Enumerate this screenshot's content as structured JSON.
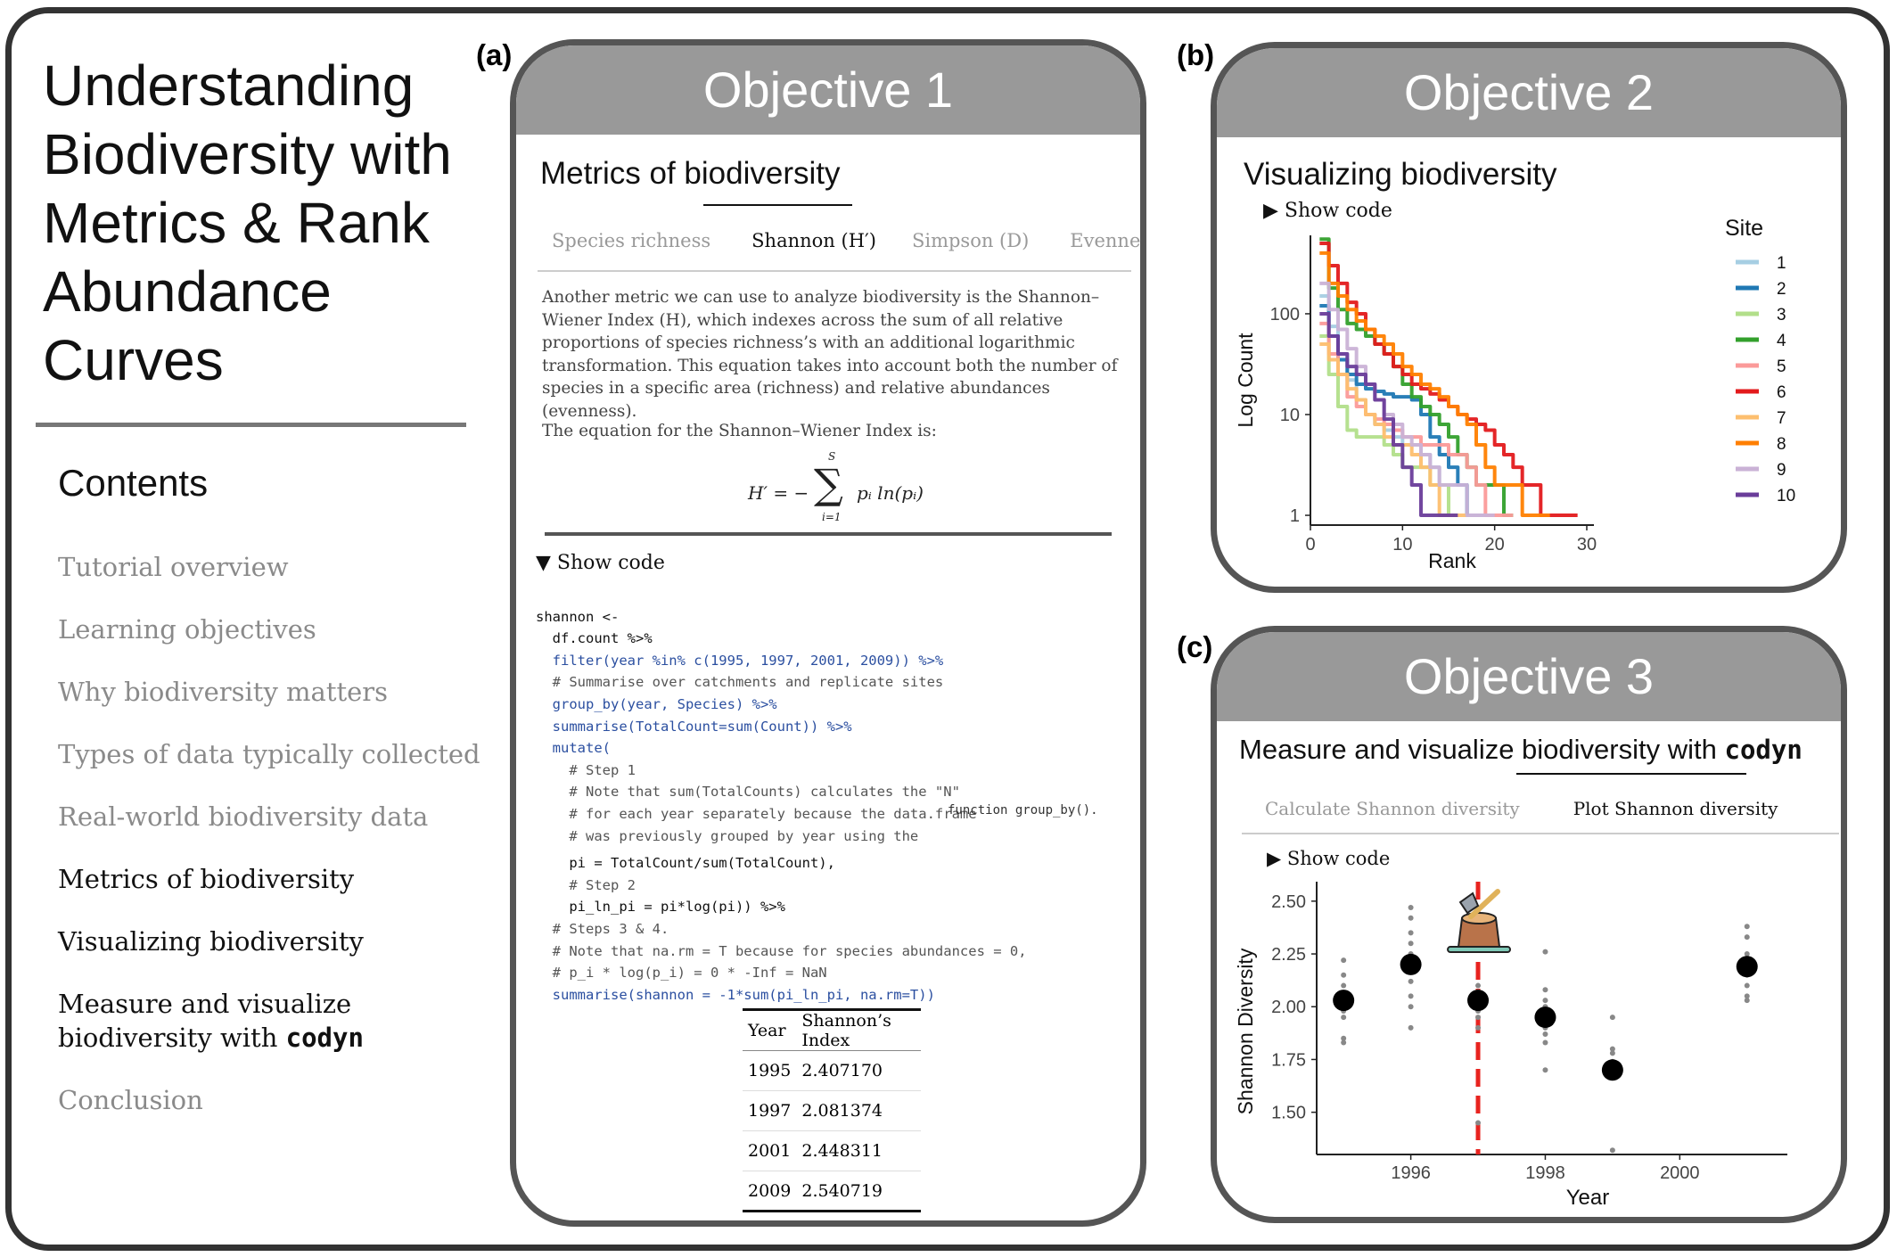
{
  "sidebar": {
    "title": "Understanding\nBiodiversity with\nMetrics & Rank\nAbundance\nCurves",
    "contents_heading": "Contents",
    "items": [
      {
        "label": "Tutorial overview"
      },
      {
        "label": "Learning objectives"
      },
      {
        "label": "Why biodiversity matters"
      },
      {
        "label": "Types of data typically collected"
      },
      {
        "label": "Real-world biodiversity data"
      },
      {
        "label": "Metrics of biodiversity"
      },
      {
        "label": "Visualizing biodiversity"
      },
      {
        "label": "Measure and visualize biodiversity with",
        "code": "codyn"
      },
      {
        "label": "Conclusion"
      }
    ]
  },
  "panel_a": {
    "label": "(a)",
    "title": "Objective 1",
    "heading": "Metrics of biodiversity",
    "tabs": [
      "Species richness",
      "Shannon (H′)",
      "Simpson (D)",
      "Evenness (E)"
    ],
    "paragraph1": "Another metric we can use to analyze biodiversity is the Shannon–Wiener Index (H), which indexes across the sum of all relative proportions of species richness’s with an additional logarithmic transformation. This equation takes into account both the number of species in a specific area (richness) and relative abundances (evenness).",
    "paragraph2": "The equation for the Shannon–Wiener Index is:",
    "equation": {
      "lhs": "H′ = −",
      "upper": "S",
      "lower": "i=1",
      "term": "pᵢ ln(pᵢ)"
    },
    "show_code": "▼  Show code",
    "code_lines": [
      "shannon <-",
      "  df.count %>%",
      "  filter(year %in% c(1995, 1997, 2001, 2009)) %>%",
      "  # Summarise over catchments and replicate sites",
      "  group_by(year, Species) %>%",
      "  summarise(TotalCount=sum(Count)) %>%",
      "  mutate(",
      "    # Step 1",
      "    # Note that sum(TotalCounts) calculates the \"N\"",
      "    # for each year separately because the data.frame",
      "    # was previously grouped by year using the",
      "    pi = TotalCount/sum(TotalCount),",
      "    # Step 2",
      "    pi_ln_pi = pi*log(pi)) %>%",
      "  # Steps 3 & 4.",
      "  # Note that na.rm = T because for species abundances = 0,",
      "  # p_i * log(p_i) = 0 * -Inf = NaN",
      "  summarise(shannon = -1*sum(pi_ln_pi, na.rm=T))"
    ],
    "code_overflow": "function group_by().",
    "table": {
      "headers": [
        "Year",
        "Shannon’s Index"
      ],
      "rows": [
        [
          "1995",
          "2.407170"
        ],
        [
          "1997",
          "2.081374"
        ],
        [
          "2001",
          "2.448311"
        ],
        [
          "2009",
          "2.540719"
        ]
      ]
    }
  },
  "panel_b": {
    "label": "(b)",
    "title": "Objective 2",
    "heading": "Visualizing biodiversity",
    "show_code": "▶  Show code",
    "chart_data": {
      "type": "line",
      "xlabel": "Rank",
      "ylabel": "Log Count",
      "yscale": "log",
      "xlim": [
        0,
        30
      ],
      "ylim": [
        0.8,
        600
      ],
      "x_ticks": [
        "0",
        "10",
        "20",
        "30"
      ],
      "y_ticks": [
        "1",
        "10",
        "100"
      ],
      "legend_title": "Site",
      "legend_position": "right",
      "series": [
        {
          "name": "1",
          "color": "#a6cee3",
          "x": [
            1,
            2,
            3,
            4,
            5,
            6,
            7,
            8,
            9,
            10,
            11,
            12,
            13,
            14,
            15,
            16,
            17,
            18,
            19
          ],
          "y": [
            150,
            75,
            40,
            22,
            14,
            10,
            8,
            7,
            6,
            5,
            5,
            4,
            3,
            2,
            2,
            2,
            1,
            1,
            1
          ]
        },
        {
          "name": "2",
          "color": "#1f78b4",
          "x": [
            1,
            2,
            3,
            4,
            5,
            6,
            7,
            8,
            9,
            10,
            11,
            12,
            13,
            14,
            15,
            16,
            17
          ],
          "y": [
            120,
            60,
            35,
            25,
            20,
            18,
            17,
            16,
            15,
            15,
            14,
            10,
            6,
            4,
            3,
            2,
            1
          ]
        },
        {
          "name": "3",
          "color": "#b2df8a",
          "x": [
            1,
            2,
            3,
            4,
            5,
            6,
            7,
            8,
            9,
            10,
            11,
            12,
            13,
            14,
            15,
            16
          ],
          "y": [
            60,
            25,
            12,
            7,
            6,
            6,
            6,
            5,
            4,
            3,
            3,
            3,
            2,
            2,
            1,
            1
          ]
        },
        {
          "name": "4",
          "color": "#33a02c",
          "x": [
            1,
            2,
            3,
            4,
            5,
            6,
            7,
            8,
            9,
            10,
            11,
            12,
            13,
            14,
            15,
            16,
            17,
            18,
            19,
            20,
            21,
            22
          ],
          "y": [
            550,
            180,
            110,
            80,
            70,
            60,
            50,
            40,
            30,
            20,
            15,
            12,
            10,
            8,
            6,
            4,
            3,
            2,
            2,
            2,
            1,
            1
          ]
        },
        {
          "name": "5",
          "color": "#fb9a99",
          "x": [
            1,
            2,
            3,
            4,
            5,
            6,
            7,
            8,
            9,
            10,
            11,
            12,
            13,
            14,
            15,
            16,
            17,
            18,
            19,
            20,
            21,
            22
          ],
          "y": [
            80,
            40,
            25,
            15,
            12,
            10,
            9,
            8,
            7,
            6,
            6,
            5,
            5,
            5,
            4,
            4,
            3,
            2,
            1,
            1,
            1,
            1
          ]
        },
        {
          "name": "6",
          "color": "#e31a1c",
          "x": [
            1,
            2,
            3,
            4,
            5,
            6,
            7,
            8,
            9,
            10,
            11,
            12,
            13,
            14,
            15,
            16,
            17,
            18,
            19,
            20,
            21,
            22,
            23,
            24,
            25,
            26,
            27,
            28,
            29
          ],
          "y": [
            500,
            300,
            200,
            130,
            100,
            70,
            50,
            40,
            30,
            25,
            20,
            18,
            16,
            14,
            12,
            10,
            9,
            8,
            7,
            5,
            4,
            3,
            2,
            2,
            1,
            1,
            1,
            1,
            1
          ]
        },
        {
          "name": "7",
          "color": "#fdbf6f",
          "x": [
            1,
            2,
            3,
            4,
            5,
            6,
            7,
            8,
            9,
            10,
            11,
            12,
            13,
            14,
            15,
            16,
            17
          ],
          "y": [
            50,
            35,
            25,
            18,
            14,
            10,
            8,
            6,
            5,
            5,
            4,
            3,
            2,
            1,
            1,
            1,
            1
          ]
        },
        {
          "name": "8",
          "color": "#ff7f00",
          "x": [
            1,
            2,
            3,
            4,
            5,
            6,
            7,
            8,
            9,
            10,
            11,
            12,
            13,
            14,
            15,
            16,
            17,
            18,
            19,
            20,
            21,
            22,
            23,
            24,
            25,
            26
          ],
          "y": [
            400,
            200,
            150,
            110,
            85,
            70,
            60,
            50,
            40,
            30,
            25,
            20,
            18,
            15,
            12,
            10,
            8,
            5,
            3,
            2,
            2,
            2,
            1,
            1,
            1,
            1
          ]
        },
        {
          "name": "9",
          "color": "#cab2d6",
          "x": [
            1,
            2,
            3,
            4,
            5,
            6,
            7,
            8,
            9,
            10,
            11,
            12,
            13,
            14,
            15,
            16,
            17,
            18,
            19,
            20
          ],
          "y": [
            200,
            110,
            70,
            45,
            30,
            20,
            14,
            10,
            8,
            6,
            5,
            4,
            3,
            2,
            2,
            2,
            1,
            1,
            1,
            1
          ]
        },
        {
          "name": "10",
          "color": "#6a3d9a",
          "x": [
            1,
            2,
            3,
            4,
            5,
            6,
            7,
            8,
            9,
            10,
            11,
            12,
            13,
            14,
            15,
            16
          ],
          "y": [
            100,
            60,
            40,
            30,
            25,
            20,
            14,
            9,
            5,
            3,
            2,
            1,
            1,
            1,
            1,
            1
          ]
        }
      ]
    }
  },
  "panel_c": {
    "label": "(c)",
    "title": "Objective 3",
    "heading": "Measure and visualize biodiversity with",
    "heading_code": "codyn",
    "tabs": [
      "Calculate Shannon diversity",
      "Plot Shannon diversity"
    ],
    "show_code": "▶  Show code",
    "chart_data": {
      "type": "scatter",
      "xlabel": "Year",
      "ylabel": "Shannon Diversity",
      "xlim": [
        1994.6,
        2001.6
      ],
      "ylim": [
        1.3,
        2.55
      ],
      "x_ticks": [
        "1996",
        "1998",
        "2000"
      ],
      "y_ticks": [
        "1.50",
        "1.75",
        "2.00",
        "2.25",
        "2.50"
      ],
      "vline": {
        "x": 1997,
        "color": "#e8231f",
        "style": "dashed"
      },
      "icon": "stump-with-axe-icon",
      "means": [
        {
          "x": 1995,
          "y": 2.03
        },
        {
          "x": 1996,
          "y": 2.2
        },
        {
          "x": 1997,
          "y": 2.03
        },
        {
          "x": 1998,
          "y": 1.95
        },
        {
          "x": 1999,
          "y": 1.7
        },
        {
          "x": 2001,
          "y": 2.19
        }
      ],
      "points": [
        {
          "x": 1995,
          "y": [
            2.22,
            2.15,
            2.1,
            2.05,
            2.02,
            1.98,
            1.95,
            1.85,
            1.83
          ]
        },
        {
          "x": 1996,
          "y": [
            2.47,
            2.42,
            2.35,
            2.3,
            2.25,
            2.18,
            2.12,
            2.05,
            2.0,
            1.9
          ]
        },
        {
          "x": 1997,
          "y": [
            2.1,
            2.07,
            2.05,
            2.0,
            1.98,
            1.95,
            1.9,
            1.45
          ]
        },
        {
          "x": 1998,
          "y": [
            2.26,
            2.08,
            2.03,
            2.0,
            1.95,
            1.9,
            1.87,
            1.83,
            1.7
          ]
        },
        {
          "x": 1999,
          "y": [
            1.95,
            1.8,
            1.78,
            1.74,
            1.7,
            1.67,
            1.32
          ]
        },
        {
          "x": 2001,
          "y": [
            2.38,
            2.33,
            2.25,
            2.2,
            2.15,
            2.1,
            2.05,
            2.03
          ]
        }
      ]
    }
  }
}
